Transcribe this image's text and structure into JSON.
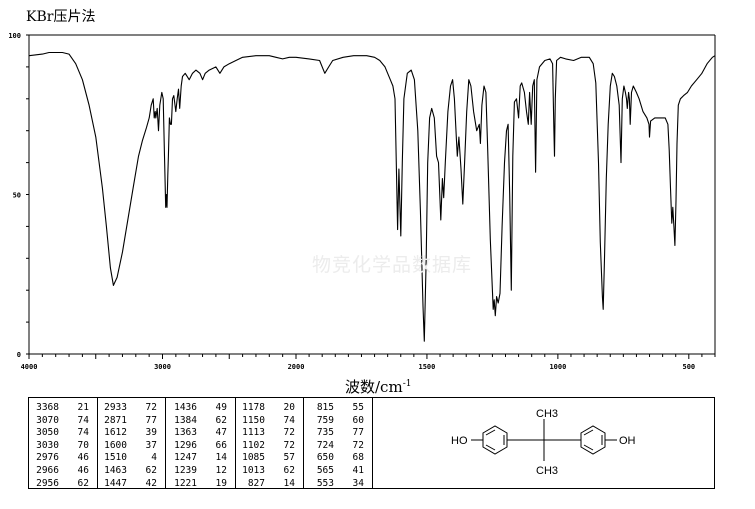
{
  "chart_data": {
    "type": "line",
    "title": "KBr压片法",
    "xlabel": "波数/cm",
    "xlabel_sup": "-1",
    "ylabel": "",
    "xlim": [
      4000,
      400
    ],
    "x_scale": "piecewise linear, 2x expanded below 2000",
    "ylim": [
      0,
      100
    ],
    "grid": false,
    "x_ticks": [
      "4000",
      "3000",
      "2000",
      "1500",
      "1000",
      "500"
    ],
    "y_ticks": [
      "100",
      "50",
      "0"
    ],
    "watermark": "物竞化学品数据库",
    "series": [
      {
        "points": [
          [
            4000,
            93.5
          ],
          [
            3900,
            94
          ],
          [
            3850,
            94.5
          ],
          [
            3750,
            94.5
          ],
          [
            3700,
            94
          ],
          [
            3650,
            91
          ],
          [
            3600,
            86
          ],
          [
            3550,
            78
          ],
          [
            3500,
            68
          ],
          [
            3450,
            52
          ],
          [
            3420,
            40
          ],
          [
            3390,
            27
          ],
          [
            3368,
            21.5
          ],
          [
            3340,
            24
          ],
          [
            3300,
            32
          ],
          [
            3260,
            42
          ],
          [
            3220,
            52
          ],
          [
            3180,
            62
          ],
          [
            3150,
            67
          ],
          [
            3120,
            71
          ],
          [
            3100,
            74
          ],
          [
            3085,
            78
          ],
          [
            3070,
            80
          ],
          [
            3062,
            74
          ],
          [
            3055,
            76
          ],
          [
            3050,
            74
          ],
          [
            3040,
            77
          ],
          [
            3030,
            70
          ],
          [
            3020,
            78
          ],
          [
            3005,
            82
          ],
          [
            2995,
            80
          ],
          [
            2985,
            62
          ],
          [
            2976,
            46
          ],
          [
            2970,
            50
          ],
          [
            2966,
            46
          ],
          [
            2960,
            56
          ],
          [
            2956,
            62
          ],
          [
            2948,
            74
          ],
          [
            2940,
            72
          ],
          [
            2933,
            72
          ],
          [
            2925,
            80
          ],
          [
            2915,
            81
          ],
          [
            2900,
            76
          ],
          [
            2890,
            80
          ],
          [
            2880,
            83
          ],
          [
            2871,
            77
          ],
          [
            2860,
            84
          ],
          [
            2850,
            87
          ],
          [
            2830,
            88
          ],
          [
            2800,
            86
          ],
          [
            2775,
            88
          ],
          [
            2750,
            89
          ],
          [
            2720,
            88
          ],
          [
            2700,
            86
          ],
          [
            2680,
            88
          ],
          [
            2650,
            89
          ],
          [
            2600,
            90
          ],
          [
            2570,
            88
          ],
          [
            2540,
            90
          ],
          [
            2500,
            91
          ],
          [
            2450,
            92
          ],
          [
            2400,
            93
          ],
          [
            2300,
            93.5
          ],
          [
            2200,
            93.5
          ],
          [
            2150,
            93
          ],
          [
            2100,
            92.5
          ],
          [
            2050,
            93
          ],
          [
            2000,
            93
          ],
          [
            1950,
            92.5
          ],
          [
            1910,
            92
          ],
          [
            1890,
            88
          ],
          [
            1875,
            90
          ],
          [
            1860,
            92
          ],
          [
            1820,
            93
          ],
          [
            1780,
            93.5
          ],
          [
            1730,
            93.5
          ],
          [
            1700,
            93
          ],
          [
            1680,
            92
          ],
          [
            1660,
            90
          ],
          [
            1640,
            86
          ],
          [
            1630,
            84
          ],
          [
            1622,
            80
          ],
          [
            1616,
            55
          ],
          [
            1612,
            39
          ],
          [
            1607,
            58
          ],
          [
            1600,
            37
          ],
          [
            1594,
            60
          ],
          [
            1588,
            80
          ],
          [
            1575,
            88
          ],
          [
            1560,
            89
          ],
          [
            1548,
            86
          ],
          [
            1535,
            70
          ],
          [
            1525,
            45
          ],
          [
            1515,
            15
          ],
          [
            1510,
            4
          ],
          [
            1503,
            30
          ],
          [
            1497,
            60
          ],
          [
            1490,
            74
          ],
          [
            1482,
            77
          ],
          [
            1472,
            74
          ],
          [
            1463,
            62
          ],
          [
            1456,
            60
          ],
          [
            1447,
            42
          ],
          [
            1441,
            55
          ],
          [
            1436,
            49
          ],
          [
            1430,
            60
          ],
          [
            1420,
            76
          ],
          [
            1410,
            84
          ],
          [
            1402,
            86
          ],
          [
            1395,
            80
          ],
          [
            1388,
            68
          ],
          [
            1384,
            62
          ],
          [
            1378,
            68
          ],
          [
            1370,
            58
          ],
          [
            1363,
            47
          ],
          [
            1356,
            60
          ],
          [
            1348,
            76
          ],
          [
            1340,
            86
          ],
          [
            1332,
            84
          ],
          [
            1322,
            76
          ],
          [
            1310,
            70
          ],
          [
            1300,
            72
          ],
          [
            1296,
            66
          ],
          [
            1290,
            78
          ],
          [
            1282,
            84
          ],
          [
            1275,
            82
          ],
          [
            1268,
            64
          ],
          [
            1258,
            36
          ],
          [
            1250,
            20
          ],
          [
            1247,
            14
          ],
          [
            1243,
            17
          ],
          [
            1239,
            12
          ],
          [
            1234,
            18
          ],
          [
            1228,
            16
          ],
          [
            1221,
            19
          ],
          [
            1213,
            40
          ],
          [
            1204,
            60
          ],
          [
            1196,
            70
          ],
          [
            1190,
            72
          ],
          [
            1184,
            50
          ],
          [
            1178,
            20
          ],
          [
            1172,
            62
          ],
          [
            1166,
            79
          ],
          [
            1158,
            80
          ],
          [
            1150,
            74
          ],
          [
            1144,
            84
          ],
          [
            1138,
            85
          ],
          [
            1128,
            82
          ],
          [
            1120,
            76
          ],
          [
            1113,
            72
          ],
          [
            1108,
            82
          ],
          [
            1102,
            72
          ],
          [
            1096,
            84
          ],
          [
            1090,
            86
          ],
          [
            1085,
            57
          ],
          [
            1080,
            86
          ],
          [
            1070,
            90
          ],
          [
            1050,
            92
          ],
          [
            1030,
            92.5
          ],
          [
            1020,
            91
          ],
          [
            1015,
            70
          ],
          [
            1013,
            62
          ],
          [
            1010,
            80
          ],
          [
            1005,
            92
          ],
          [
            990,
            93
          ],
          [
            970,
            92.5
          ],
          [
            940,
            92
          ],
          [
            910,
            93
          ],
          [
            880,
            93
          ],
          [
            865,
            91
          ],
          [
            855,
            85
          ],
          [
            845,
            60
          ],
          [
            838,
            35
          ],
          [
            830,
            18
          ],
          [
            827,
            14
          ],
          [
            822,
            30
          ],
          [
            815,
            55
          ],
          [
            808,
            72
          ],
          [
            800,
            84
          ],
          [
            792,
            88
          ],
          [
            784,
            87
          ],
          [
            775,
            84
          ],
          [
            766,
            78
          ],
          [
            759,
            60
          ],
          [
            754,
            80
          ],
          [
            748,
            84
          ],
          [
            742,
            82
          ],
          [
            738,
            80
          ],
          [
            735,
            77
          ],
          [
            730,
            82
          ],
          [
            727,
            80
          ],
          [
            724,
            72
          ],
          [
            719,
            82
          ],
          [
            712,
            84
          ],
          [
            700,
            82
          ],
          [
            690,
            80
          ],
          [
            675,
            76
          ],
          [
            660,
            74
          ],
          [
            652,
            72
          ],
          [
            650,
            68
          ],
          [
            646,
            73
          ],
          [
            630,
            74
          ],
          [
            610,
            74
          ],
          [
            590,
            74
          ],
          [
            580,
            72
          ],
          [
            575,
            64
          ],
          [
            570,
            52
          ],
          [
            565,
            41
          ],
          [
            561,
            46
          ],
          [
            557,
            40
          ],
          [
            553,
            34
          ],
          [
            549,
            48
          ],
          [
            545,
            66
          ],
          [
            540,
            78
          ],
          [
            532,
            80
          ],
          [
            520,
            81
          ],
          [
            505,
            82
          ],
          [
            490,
            84
          ],
          [
            470,
            86
          ],
          [
            450,
            88
          ],
          [
            430,
            91
          ],
          [
            410,
            93
          ],
          [
            400,
            93.5
          ]
        ]
      }
    ]
  },
  "peak_table": {
    "columns": [
      [
        [
          "3368",
          "21"
        ],
        [
          "3070",
          "74"
        ],
        [
          "3050",
          "74"
        ],
        [
          "3030",
          "70"
        ],
        [
          "2976",
          "46"
        ],
        [
          "2966",
          "46"
        ],
        [
          "2956",
          "62"
        ]
      ],
      [
        [
          "2933",
          "72"
        ],
        [
          "2871",
          "77"
        ],
        [
          "1612",
          "39"
        ],
        [
          "1600",
          "37"
        ],
        [
          "1510",
          "4"
        ],
        [
          "1463",
          "62"
        ],
        [
          "1447",
          "42"
        ]
      ],
      [
        [
          "1436",
          "49"
        ],
        [
          "1384",
          "62"
        ],
        [
          "1363",
          "47"
        ],
        [
          "1296",
          "66"
        ],
        [
          "1247",
          "14"
        ],
        [
          "1239",
          "12"
        ],
        [
          "1221",
          "19"
        ]
      ],
      [
        [
          "1178",
          "20"
        ],
        [
          "1150",
          "74"
        ],
        [
          "1113",
          "72"
        ],
        [
          "1102",
          "72"
        ],
        [
          "1085",
          "57"
        ],
        [
          "1013",
          "62"
        ],
        [
          "827",
          "14"
        ]
      ],
      [
        [
          "815",
          "55"
        ],
        [
          "759",
          "60"
        ],
        [
          "735",
          "77"
        ],
        [
          "724",
          "72"
        ],
        [
          "650",
          "68"
        ],
        [
          "565",
          "41"
        ],
        [
          "553",
          "34"
        ]
      ]
    ]
  },
  "structure": {
    "left_label": "HO",
    "right_label": "OH",
    "top_label": "CH3",
    "bottom_label": "CH3"
  }
}
